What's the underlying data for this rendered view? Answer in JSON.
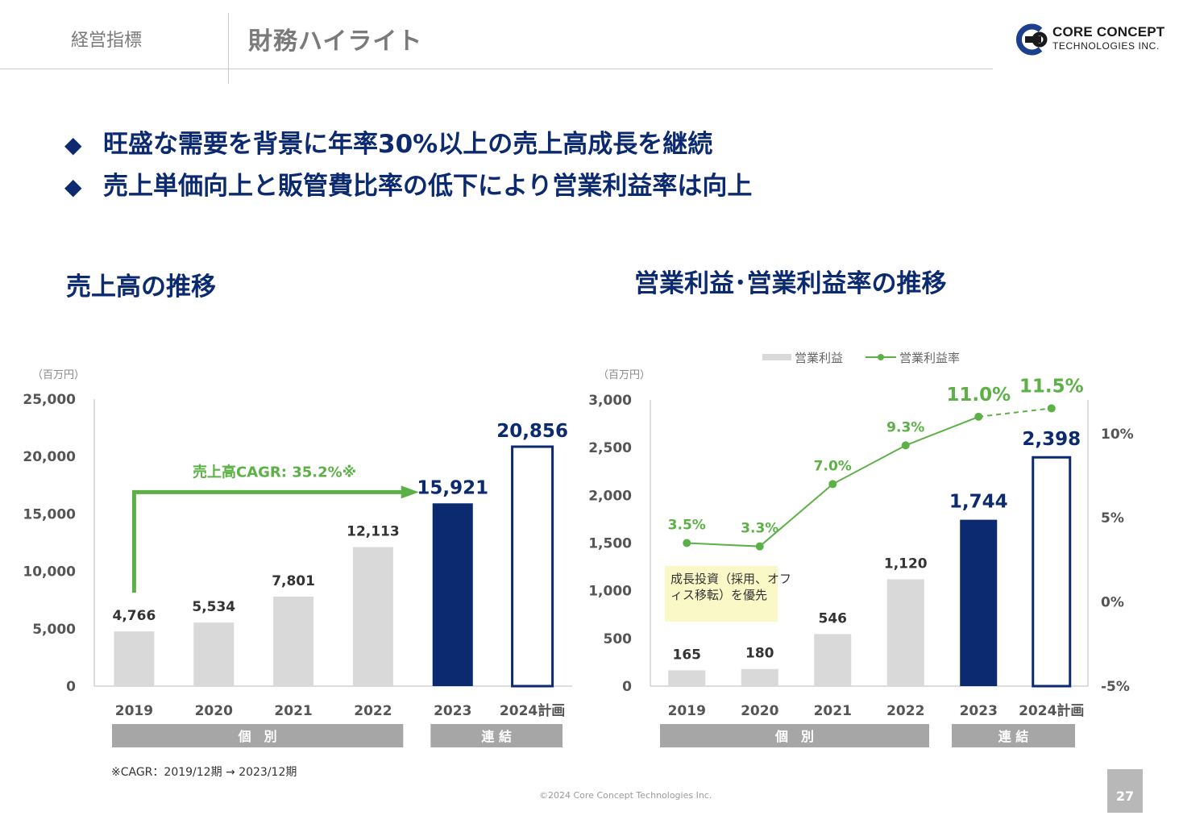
{
  "header": {
    "section": "経営指標",
    "title": "財務ハイライト",
    "logo_line1": "CORE CONCEPT",
    "logo_line2": "TECHNOLOGIES INC."
  },
  "bullets": [
    "旺盛な需要を背景に年率30%以上の売上高成長を継続",
    "売上単価向上と販管費比率の低下により営業利益率は向上"
  ],
  "bullet_glyph": "◆",
  "colors": {
    "navy": "#0b2a6f",
    "bar_gray": "#d9d9d9",
    "green": "#5cb146",
    "band_gray": "#a6a6a6",
    "callout_bg": "#fbf8c8"
  },
  "chart_data": [
    {
      "type": "bar",
      "title": "売上高の推移",
      "unit_label": "（百万円）",
      "categories": [
        "2019",
        "2020",
        "2021",
        "2022",
        "2023",
        "2024計画"
      ],
      "values": [
        4766,
        5534,
        7801,
        12113,
        15921,
        20856
      ],
      "value_labels": [
        "4,766",
        "5,534",
        "7,801",
        "12,113",
        "15,921",
        "20,856"
      ],
      "bar_styles": [
        "gray",
        "gray",
        "gray",
        "gray",
        "navy",
        "outline"
      ],
      "ylim": [
        0,
        25000
      ],
      "yticks": [
        0,
        5000,
        10000,
        15000,
        20000,
        25000
      ],
      "ytick_labels": [
        "0",
        "5,000",
        "10,000",
        "15,000",
        "20,000",
        "25,000"
      ],
      "annotation": "売上高CAGR: 35.2%※",
      "groups": [
        {
          "label": "個　別",
          "from": "2019",
          "to": "2022"
        },
        {
          "label": "連 結",
          "from": "2023",
          "to": "2024計画"
        }
      ],
      "footnote": "※CAGR：2019/12期 → 2023/12期"
    },
    {
      "type": "bar+line",
      "title": "営業利益･営業利益率の推移",
      "unit_label": "（百万円）",
      "categories": [
        "2019",
        "2020",
        "2021",
        "2022",
        "2023",
        "2024計画"
      ],
      "series": [
        {
          "name": "営業利益",
          "type": "bar",
          "values": [
            165,
            180,
            546,
            1120,
            1744,
            2398
          ],
          "value_labels": [
            "165",
            "180",
            "546",
            "1,120",
            "1,744",
            "2,398"
          ],
          "bar_styles": [
            "gray",
            "gray",
            "gray",
            "gray",
            "navy",
            "outline"
          ]
        },
        {
          "name": "営業利益率",
          "type": "line",
          "axis": "right",
          "values": [
            3.5,
            3.3,
            7.0,
            9.3,
            11.0,
            11.5
          ],
          "value_labels": [
            "3.5%",
            "3.3%",
            "7.0%",
            "9.3%",
            "11.0%",
            "11.5%"
          ],
          "last_segment_dashed": true
        }
      ],
      "ylim": [
        0,
        3000
      ],
      "yticks": [
        0,
        500,
        1000,
        1500,
        2000,
        2500,
        3000
      ],
      "ytick_labels": [
        "0",
        "500",
        "1,000",
        "1,500",
        "2,000",
        "2,500",
        "3,000"
      ],
      "y2lim": [
        -5,
        12
      ],
      "y2ticks": [
        -5,
        0,
        5,
        10
      ],
      "y2tick_labels": [
        "-5%",
        "0%",
        "5%",
        "10%"
      ],
      "legend_position": "top",
      "callout": "成長投資（採用、オフィス移転）を優先",
      "groups": [
        {
          "label": "個　別",
          "from": "2019",
          "to": "2022"
        },
        {
          "label": "連 結",
          "from": "2023",
          "to": "2024計画"
        }
      ]
    }
  ],
  "footer": {
    "copyright": "©2024 Core Concept Technologies Inc.",
    "page": "27"
  }
}
